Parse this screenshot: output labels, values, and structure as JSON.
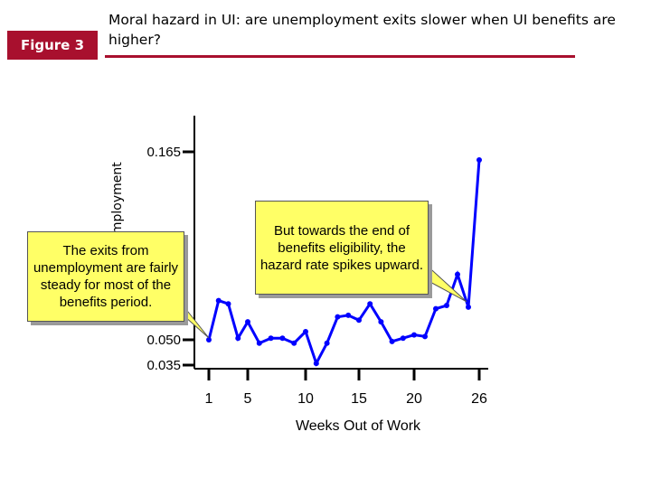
{
  "figure_label": "Figure 3",
  "title": "Moral hazard in UI:  are unemployment exits slower when UI benefits are higher?",
  "callouts": {
    "left": "The exits from unemployment are fairly steady for most of the benefits period.",
    "right": "But towards the end of benefits eligibility, the hazard rate spikes upward."
  },
  "colors": {
    "accent": "#a8102e",
    "line": "#0000ff",
    "callout_bg": "#ffff66"
  },
  "chart_data": {
    "type": "line",
    "xlabel": "Weeks Out of Work",
    "ylabel": "Exits from unemployment",
    "x_ticks": [
      1,
      5,
      10,
      15,
      20,
      26
    ],
    "y_ticks": [
      0.035,
      0.05,
      0.165
    ],
    "y_tick_labels": [
      "0.035",
      "0.050",
      "0.165"
    ],
    "x": [
      1,
      2,
      3,
      4,
      5,
      6,
      7,
      8,
      9,
      10,
      11,
      12,
      13,
      14,
      15,
      16,
      17,
      18,
      19,
      20,
      21,
      22,
      23,
      24,
      25,
      26
    ],
    "y": [
      0.05,
      0.074,
      0.072,
      0.051,
      0.061,
      0.048,
      0.051,
      0.051,
      0.048,
      0.055,
      0.036,
      0.048,
      0.064,
      0.065,
      0.062,
      0.072,
      0.061,
      0.049,
      0.051,
      0.053,
      0.052,
      0.069,
      0.071,
      0.09,
      0.07,
      0.16
    ],
    "grid": false,
    "legend": "none"
  }
}
